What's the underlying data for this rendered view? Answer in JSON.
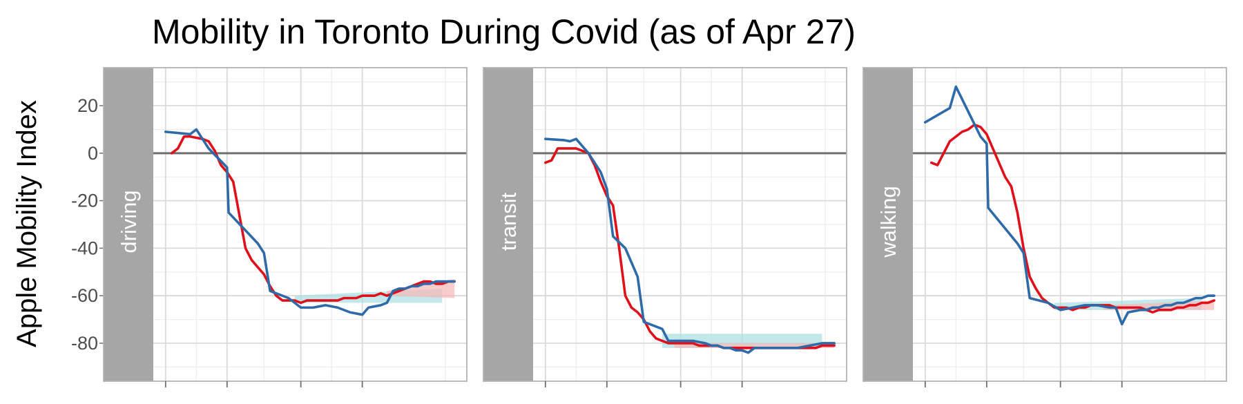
{
  "chart_data": {
    "type": "line",
    "title": "Mobility in Toronto During Covid (as of Apr 27)",
    "ylabel": "Apple Mobility Index",
    "xlabel": "",
    "ylim": [
      -96,
      36
    ],
    "yticks": [
      20,
      0,
      -20,
      -40,
      -60,
      -80
    ],
    "ytick_labels": [
      "20",
      "0",
      "-20",
      "-40",
      "-60",
      "-80"
    ],
    "xlim": [
      -2,
      100
    ],
    "xticks": [
      2,
      22,
      46,
      66
    ],
    "reference_line": 0,
    "grid": true,
    "legend": "none",
    "colors": {
      "red_series": "#e0101b",
      "blue_series": "#2f6aa8",
      "red_ribbon": "#f8b8b8",
      "blue_ribbon": "#a8dedf",
      "strip": "#a6a6a6",
      "panel_border": "#b3b3b3",
      "grid_major": "#d9d9d9",
      "grid_minor": "#ececec",
      "zero_line": "#6e6e6e"
    },
    "panels": [
      {
        "label": "driving",
        "red": {
          "x": [
            4,
            6,
            8,
            10,
            12,
            14,
            16,
            18,
            20,
            22,
            24,
            26,
            28,
            30,
            32,
            34,
            36,
            38,
            40,
            42,
            44,
            46,
            48,
            50,
            52,
            54,
            56,
            58,
            60,
            62,
            64,
            66,
            68,
            70,
            72,
            74,
            76,
            78,
            80,
            82,
            84,
            86,
            88,
            90,
            92,
            94,
            96
          ],
          "y": [
            0,
            2,
            7,
            7,
            6.5,
            6,
            5,
            1,
            -5,
            -8,
            -12,
            -26,
            -40,
            -45,
            -48,
            -51,
            -56,
            -60,
            -62,
            -62,
            -62,
            -63,
            -62,
            -62,
            -62,
            -62,
            -62,
            -62,
            -61,
            -61,
            -61,
            -60,
            -60,
            -60,
            -59,
            -60,
            -59,
            -58,
            -57,
            -56,
            -55,
            -54,
            -54,
            -55,
            -55,
            -54,
            -54
          ]
        },
        "blue": {
          "x": [
            2,
            10,
            12,
            16,
            22,
            22.5,
            32,
            34,
            36,
            42,
            46,
            50,
            54,
            58,
            62,
            66,
            68,
            72,
            74,
            76,
            78,
            80,
            82,
            84,
            86,
            88,
            90,
            92,
            94,
            96
          ],
          "y": [
            9,
            8,
            10,
            2,
            -6,
            -25,
            -38,
            -42,
            -58,
            -61,
            -65,
            -65,
            -64,
            -65,
            -67,
            -68,
            -65,
            -64,
            -63,
            -58,
            -57,
            -57,
            -56,
            -56,
            -55,
            -55,
            -54,
            -54,
            -54,
            -54
          ]
        },
        "red_ribbon": {
          "x": [
            74,
            96
          ],
          "y_low": [
            -60,
            -61
          ],
          "y_high": [
            -58,
            -53
          ]
        },
        "blue_ribbon": {
          "x": [
            44,
            92
          ],
          "y_low": [
            -63,
            -63
          ],
          "y_high": [
            -60,
            -57
          ]
        }
      },
      {
        "label": "transit",
        "red": {
          "x": [
            2,
            4,
            6,
            8,
            10,
            12,
            14,
            16,
            18,
            20,
            22,
            24,
            26,
            28,
            30,
            32,
            34,
            36,
            38,
            40,
            42,
            44,
            46,
            48,
            50,
            52,
            54,
            56,
            58,
            60,
            62,
            64,
            66,
            68,
            70,
            72,
            74,
            76,
            78,
            80,
            82,
            84,
            86,
            88,
            90,
            92,
            94,
            96
          ],
          "y": [
            -4,
            -3,
            2,
            2,
            2,
            2,
            1,
            0,
            -5,
            -12,
            -18,
            -22,
            -40,
            -60,
            -65,
            -67,
            -70,
            -75,
            -78,
            -79,
            -80,
            -80,
            -80,
            -80,
            -80,
            -81,
            -81,
            -81,
            -81,
            -82,
            -82,
            -82,
            -82,
            -82,
            -82,
            -82,
            -82,
            -82,
            -82,
            -82,
            -82,
            -82,
            -82,
            -82,
            -82,
            -81,
            -81,
            -81
          ]
        },
        "blue": {
          "x": [
            2,
            8,
            10,
            12,
            16,
            20,
            22,
            24,
            28,
            32,
            34,
            36,
            40,
            42,
            46,
            50,
            54,
            56,
            58,
            60,
            62,
            64,
            66,
            68,
            70,
            72,
            76,
            80,
            84,
            88,
            92,
            96
          ],
          "y": [
            6,
            5.5,
            5,
            6,
            0,
            -8,
            -15,
            -35,
            -40,
            -52,
            -71,
            -72,
            -74,
            -79,
            -79,
            -79,
            -80,
            -81,
            -81,
            -82,
            -82,
            -83,
            -83,
            -84,
            -82,
            -82,
            -82,
            -82,
            -82,
            -81,
            -80,
            -80
          ]
        },
        "red_ribbon": {
          "x": [
            44,
            96
          ],
          "y_low": [
            -82,
            -82
          ],
          "y_high": [
            -80,
            -80
          ]
        },
        "blue_ribbon": {
          "x": [
            40,
            92
          ],
          "y_low": [
            -82,
            -82
          ],
          "y_high": [
            -76,
            -76
          ]
        }
      },
      {
        "label": "walking",
        "red": {
          "x": [
            4,
            6,
            8,
            10,
            12,
            14,
            16,
            18,
            20,
            22,
            24,
            26,
            28,
            30,
            32,
            34,
            36,
            38,
            40,
            42,
            44,
            46,
            48,
            50,
            52,
            54,
            56,
            58,
            60,
            62,
            64,
            66,
            68,
            70,
            72,
            74,
            76,
            78,
            80,
            82,
            84,
            86,
            88,
            90,
            92,
            94,
            96
          ],
          "y": [
            -4,
            -5,
            0,
            5,
            7,
            9,
            10,
            12,
            11,
            8,
            2,
            -4,
            -10,
            -14,
            -25,
            -40,
            -52,
            -57,
            -61,
            -63,
            -65,
            -65,
            -65,
            -66,
            -65,
            -65,
            -64,
            -64,
            -64,
            -64,
            -65,
            -65,
            -65,
            -65,
            -65,
            -66,
            -67,
            -66,
            -66,
            -66,
            -65,
            -65,
            -64,
            -64,
            -63,
            -63,
            -62
          ]
        },
        "blue": {
          "x": [
            2,
            10,
            12,
            20,
            22,
            22.5,
            32,
            34,
            36,
            42,
            46,
            50,
            54,
            58,
            62,
            64,
            66,
            68,
            72,
            74,
            76,
            78,
            80,
            82,
            84,
            86,
            88,
            90,
            92,
            94,
            96
          ],
          "y": [
            13,
            19,
            28,
            7,
            4,
            -23,
            -38,
            -42,
            -61,
            -63,
            -66,
            -65,
            -64,
            -64,
            -65,
            -65,
            -72,
            -67,
            -66,
            -66,
            -65,
            -65,
            -64,
            -64,
            -63,
            -63,
            -62,
            -61,
            -61,
            -60,
            -60
          ]
        },
        "red_ribbon": {
          "x": [
            60,
            96
          ],
          "y_low": [
            -66,
            -66
          ],
          "y_high": [
            -64,
            -62
          ]
        },
        "blue_ribbon": {
          "x": [
            44,
            92
          ],
          "y_low": [
            -66,
            -66
          ],
          "y_high": [
            -63,
            -61
          ]
        }
      }
    ]
  }
}
